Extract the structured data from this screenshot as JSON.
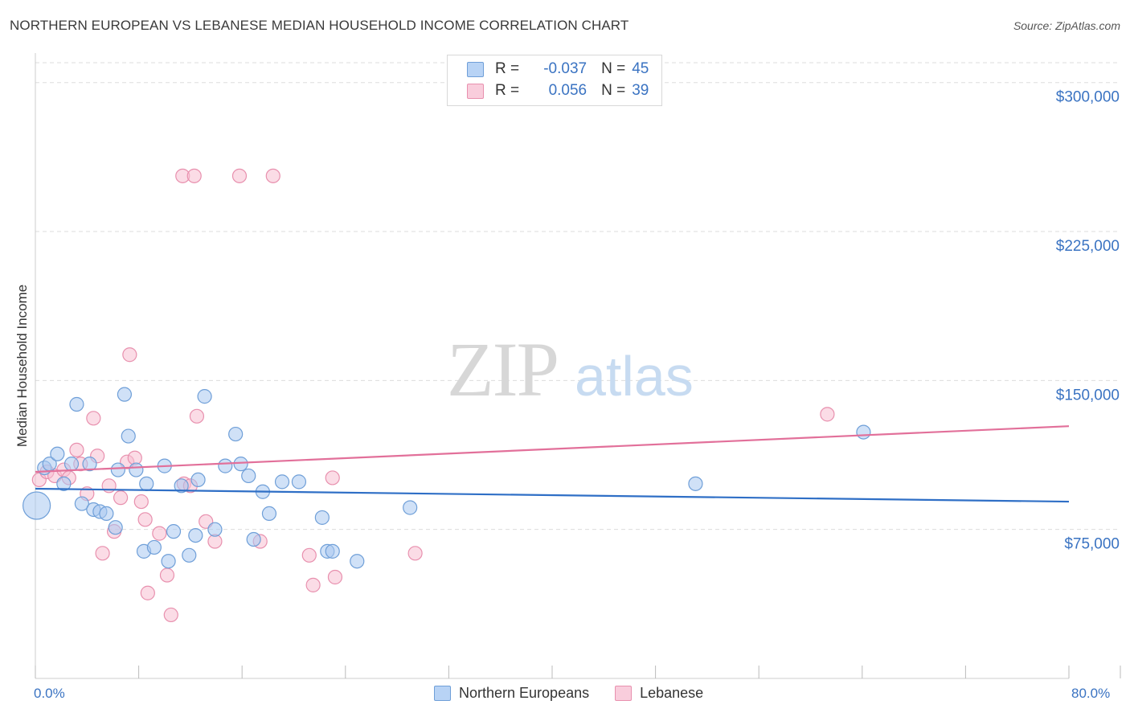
{
  "header": {
    "title": "NORTHERN EUROPEAN VS LEBANESE MEDIAN HOUSEHOLD INCOME CORRELATION CHART",
    "source": "Source: ZipAtlas.com"
  },
  "watermark": {
    "zip": "ZIP",
    "atlas": "atlas"
  },
  "legend": {
    "rows": [
      {
        "r_label": "R =",
        "r_value": "-0.037",
        "n_label": "N =",
        "n_value": "45"
      },
      {
        "r_label": "R =",
        "r_value": "0.056",
        "n_label": "N =",
        "n_value": "39"
      }
    ]
  },
  "bottom_legend": {
    "series1": "Northern Europeans",
    "series2": "Lebanese"
  },
  "colors": {
    "blue_fill": "#a9c8f0",
    "blue_stroke": "#6f9fd8",
    "blue_line": "#2f6fc6",
    "pink_fill": "#f7bfd1",
    "pink_stroke": "#e890ae",
    "pink_line": "#e2709a",
    "tick_label": "#3a73c2",
    "grid": "#dddddd"
  },
  "chart_data": {
    "type": "scatter",
    "title": "NORTHERN EUROPEAN VS LEBANESE MEDIAN HOUSEHOLD INCOME CORRELATION CHART",
    "xlabel": "",
    "ylabel": "Median Household Income",
    "xlim": [
      0,
      80
    ],
    "ylim": [
      0,
      310000
    ],
    "x_tick_labels": [
      "0.0%",
      "80.0%"
    ],
    "y_ticks": [
      75000,
      150000,
      225000,
      300000
    ],
    "y_tick_labels": [
      "$75,000",
      "$150,000",
      "$225,000",
      "$300,000"
    ],
    "grid": true,
    "legend_position": "top-center",
    "series": [
      {
        "name": "Northern Europeans",
        "r": -0.037,
        "n": 45,
        "trend": {
          "x": [
            0,
            80
          ],
          "y": [
            95500,
            89000
          ]
        },
        "points": [
          {
            "x": 0.1,
            "y": 87000,
            "big": true
          },
          {
            "x": 0.7,
            "y": 106000
          },
          {
            "x": 1.1,
            "y": 108000
          },
          {
            "x": 1.7,
            "y": 113000
          },
          {
            "x": 2.2,
            "y": 98000
          },
          {
            "x": 2.8,
            "y": 108000
          },
          {
            "x": 3.2,
            "y": 138000
          },
          {
            "x": 3.6,
            "y": 88000
          },
          {
            "x": 4.2,
            "y": 108000
          },
          {
            "x": 4.5,
            "y": 85000
          },
          {
            "x": 5.0,
            "y": 84000
          },
          {
            "x": 5.5,
            "y": 83000
          },
          {
            "x": 6.2,
            "y": 76000
          },
          {
            "x": 6.4,
            "y": 105000
          },
          {
            "x": 6.9,
            "y": 143000
          },
          {
            "x": 7.2,
            "y": 122000
          },
          {
            "x": 7.8,
            "y": 105000
          },
          {
            "x": 8.4,
            "y": 64000
          },
          {
            "x": 8.6,
            "y": 98000
          },
          {
            "x": 9.2,
            "y": 66000
          },
          {
            "x": 10.0,
            "y": 107000
          },
          {
            "x": 10.3,
            "y": 59000
          },
          {
            "x": 10.7,
            "y": 74000
          },
          {
            "x": 11.3,
            "y": 97000
          },
          {
            "x": 11.9,
            "y": 62000
          },
          {
            "x": 12.4,
            "y": 72000
          },
          {
            "x": 12.6,
            "y": 100000
          },
          {
            "x": 13.1,
            "y": 142000
          },
          {
            "x": 13.9,
            "y": 75000
          },
          {
            "x": 14.7,
            "y": 107000
          },
          {
            "x": 15.5,
            "y": 123000
          },
          {
            "x": 15.9,
            "y": 108000
          },
          {
            "x": 16.5,
            "y": 102000
          },
          {
            "x": 16.9,
            "y": 70000
          },
          {
            "x": 17.6,
            "y": 94000
          },
          {
            "x": 18.1,
            "y": 83000
          },
          {
            "x": 19.1,
            "y": 99000
          },
          {
            "x": 20.4,
            "y": 99000
          },
          {
            "x": 22.2,
            "y": 81000
          },
          {
            "x": 22.6,
            "y": 64000
          },
          {
            "x": 23.0,
            "y": 64000
          },
          {
            "x": 24.9,
            "y": 59000
          },
          {
            "x": 29.0,
            "y": 86000
          },
          {
            "x": 51.1,
            "y": 98000
          },
          {
            "x": 64.1,
            "y": 124000
          }
        ]
      },
      {
        "name": "Lebanese",
        "r": 0.056,
        "n": 39,
        "trend": {
          "x": [
            0,
            80
          ],
          "y": [
            104000,
            127000
          ]
        },
        "points": [
          {
            "x": 0.3,
            "y": 100000
          },
          {
            "x": 0.9,
            "y": 104000
          },
          {
            "x": 1.5,
            "y": 102000
          },
          {
            "x": 2.2,
            "y": 105000
          },
          {
            "x": 2.6,
            "y": 101000
          },
          {
            "x": 3.2,
            "y": 115000
          },
          {
            "x": 3.5,
            "y": 108000
          },
          {
            "x": 4.0,
            "y": 93000
          },
          {
            "x": 4.5,
            "y": 131000
          },
          {
            "x": 4.8,
            "y": 112000
          },
          {
            "x": 5.2,
            "y": 63000
          },
          {
            "x": 5.7,
            "y": 97000
          },
          {
            "x": 6.1,
            "y": 74000
          },
          {
            "x": 6.6,
            "y": 91000
          },
          {
            "x": 7.1,
            "y": 109000
          },
          {
            "x": 7.3,
            "y": 163000
          },
          {
            "x": 7.7,
            "y": 111000
          },
          {
            "x": 8.2,
            "y": 89000
          },
          {
            "x": 8.5,
            "y": 80000
          },
          {
            "x": 8.7,
            "y": 43000
          },
          {
            "x": 9.6,
            "y": 73000
          },
          {
            "x": 10.2,
            "y": 52000
          },
          {
            "x": 10.5,
            "y": 32000
          },
          {
            "x": 11.5,
            "y": 98000
          },
          {
            "x": 12.0,
            "y": 97000
          },
          {
            "x": 12.5,
            "y": 132000
          },
          {
            "x": 13.2,
            "y": 79000
          },
          {
            "x": 13.9,
            "y": 69000
          },
          {
            "x": 17.4,
            "y": 69000
          },
          {
            "x": 21.2,
            "y": 62000
          },
          {
            "x": 21.5,
            "y": 47000
          },
          {
            "x": 23.0,
            "y": 101000
          },
          {
            "x": 23.2,
            "y": 51000
          },
          {
            "x": 29.4,
            "y": 63000
          },
          {
            "x": 61.3,
            "y": 133000
          },
          {
            "x": 11.4,
            "y": 253000
          },
          {
            "x": 12.3,
            "y": 253000
          },
          {
            "x": 15.8,
            "y": 253000
          },
          {
            "x": 18.4,
            "y": 253000
          }
        ]
      }
    ]
  }
}
